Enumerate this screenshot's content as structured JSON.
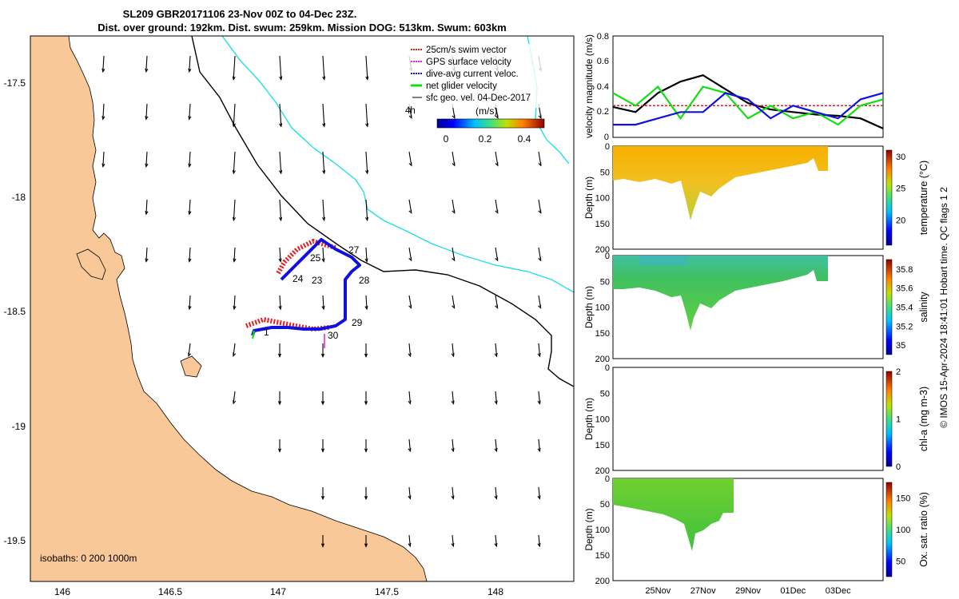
{
  "title": {
    "line1": "SL209 GBR20171106 23-Nov 00Z to 04-Dec 23Z.",
    "line2": "Dist. over ground: 192km. Dist. swum: 259km. Mission DOG: 513km. Swum: 603km"
  },
  "legend": {
    "items": [
      {
        "label": "25cm/s swim vector",
        "color": "#e02020"
      },
      {
        "label": "GPS surface velocity",
        "color": "#e020e0"
      },
      {
        "label": "dive-avg current veloc.",
        "color": "#1010e0"
      },
      {
        "label": "net glider velocity",
        "color": "#10e010"
      },
      {
        "label": "sfc geo. vel. 04-Dec-2017",
        "color": "#000000"
      }
    ],
    "hours_label": "4h",
    "colorbar_label": "(m/s)",
    "colorbar_ticks": [
      "0",
      "0.2",
      "0.4"
    ]
  },
  "map": {
    "isobaths_label": "isobaths: 0   200  1000m",
    "x_ticks": [
      "146",
      "146.5",
      "147",
      "147.5",
      "148"
    ],
    "y_ticks": [
      "-17.5",
      "-18",
      "-18.5",
      "-19",
      "-19.5"
    ],
    "day_labels": [
      "23",
      "24",
      "25",
      "27",
      "28",
      "29",
      "30",
      "1"
    ],
    "colors": {
      "land": "#f8c898",
      "shelf": "#000000",
      "deep": "#20e0e0"
    }
  },
  "right_axes": {
    "date_ticks": [
      "25Nov",
      "27Nov",
      "29Nov",
      "01Dec",
      "03Dec"
    ],
    "depth_label": "Depth (m)",
    "depth_ticks": [
      "0",
      "50",
      "100",
      "150",
      "200"
    ]
  },
  "credit": "© IMOS 15-Apr-2024 18:41:01 Hobart time. QC flags 1  2",
  "chart_data": [
    {
      "type": "line",
      "title": "velocity magnitude",
      "ylabel": "velocity magnitude (m/s)",
      "ylim": [
        0,
        0.8
      ],
      "yticks": [
        "0",
        "0.2",
        "0.4",
        "0.6",
        "0.8"
      ],
      "x_days": [
        23,
        24,
        25,
        26,
        27,
        28,
        29,
        30,
        31,
        32,
        33,
        34,
        35
      ],
      "series": [
        {
          "name": "sfc geo. vel.",
          "color": "#000000",
          "values": [
            0.24,
            0.2,
            0.35,
            0.44,
            0.49,
            0.38,
            0.27,
            0.22,
            0.2,
            0.18,
            0.17,
            0.15,
            0.07
          ]
        },
        {
          "name": "swim speed",
          "color": "#e02020",
          "values": [
            0.25,
            0.25,
            0.25,
            0.25,
            0.25,
            0.25,
            0.25,
            0.25,
            0.25,
            0.25,
            0.25,
            0.25,
            0.25
          ]
        },
        {
          "name": "net glider velocity",
          "color": "#10e010",
          "values": [
            0.35,
            0.25,
            0.4,
            0.15,
            0.4,
            0.35,
            0.15,
            0.25,
            0.15,
            0.2,
            0.1,
            0.25,
            0.3
          ]
        },
        {
          "name": "dive-avg current",
          "color": "#1010e0",
          "values": [
            0.1,
            0.1,
            0.15,
            0.2,
            0.2,
            0.35,
            0.3,
            0.15,
            0.25,
            0.2,
            0.15,
            0.3,
            0.35
          ]
        }
      ]
    },
    {
      "type": "heatmap",
      "label": "temperature (°C)",
      "clim": [
        16,
        31
      ],
      "cticks": [
        "20",
        "25",
        "30"
      ]
    },
    {
      "type": "heatmap",
      "label": "salinity",
      "clim": [
        34.9,
        35.9
      ],
      "cticks": [
        "35",
        "35.2",
        "35.4",
        "35.6",
        "35.8"
      ]
    },
    {
      "type": "heatmap",
      "label": "chl-a (mg m-3)",
      "clim": [
        0,
        2
      ],
      "cticks": [
        "0",
        "1",
        "2"
      ]
    },
    {
      "type": "heatmap",
      "label": "Ox. sat. ratio (%)",
      "clim": [
        25,
        175
      ],
      "cticks": [
        "50",
        "100",
        "150"
      ]
    }
  ]
}
